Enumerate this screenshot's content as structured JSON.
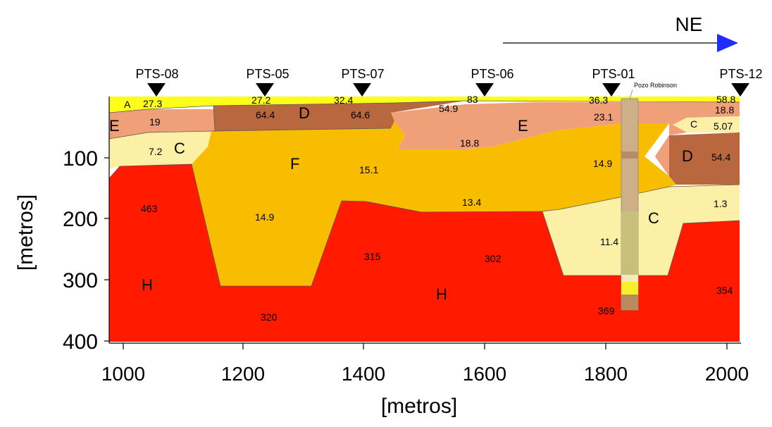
{
  "direction": {
    "label": "NE",
    "arrow_color": "#1f2bff"
  },
  "axes": {
    "x_label": "[metros]",
    "y_label": "[metros]",
    "x_ticks": [
      "1000",
      "1200",
      "1400",
      "1600",
      "1800",
      "2000"
    ],
    "y_ticks": [
      "100",
      "200",
      "300",
      "400"
    ]
  },
  "stations": [
    "PTS-08",
    "PTS-05",
    "PTS-07",
    "PTS-06",
    "PTS-01",
    "PTS-12"
  ],
  "well": {
    "label": "Pozo Robinson"
  },
  "colors": {
    "A": "#ffff1a",
    "D": "#b9673f",
    "E": "#f0a078",
    "C": "#fbf0a5",
    "F": "#f9bd00",
    "H": "#ff1a00"
  },
  "layer_letters": {
    "A": "A",
    "D1": "D",
    "D2": "D",
    "E1": "E",
    "E2": "E",
    "C1": "C",
    "C2": "C",
    "C3": "C",
    "F": "F",
    "H1": "H",
    "H2": "H"
  },
  "values": {
    "v1": "27.3",
    "v2": "27.2",
    "v3": "32.4",
    "v4": "83",
    "v5": "36.3",
    "v6": "58.8",
    "v7": "64.4",
    "v8": "64.6",
    "v9": "54.9",
    "v10": "23.1",
    "v11": "18.8",
    "v12": "19",
    "v13": "5.07",
    "v14": "7.2",
    "v15": "18.8",
    "v16": "15.1",
    "v17": "14.9",
    "v18": "54.4",
    "v19": "463",
    "v20": "14.9",
    "v21": "13.4",
    "v22": "1.3",
    "v23": "11.4",
    "v24": "315",
    "v25": "302",
    "v26": "354",
    "v27": "320",
    "v28": "369"
  }
}
